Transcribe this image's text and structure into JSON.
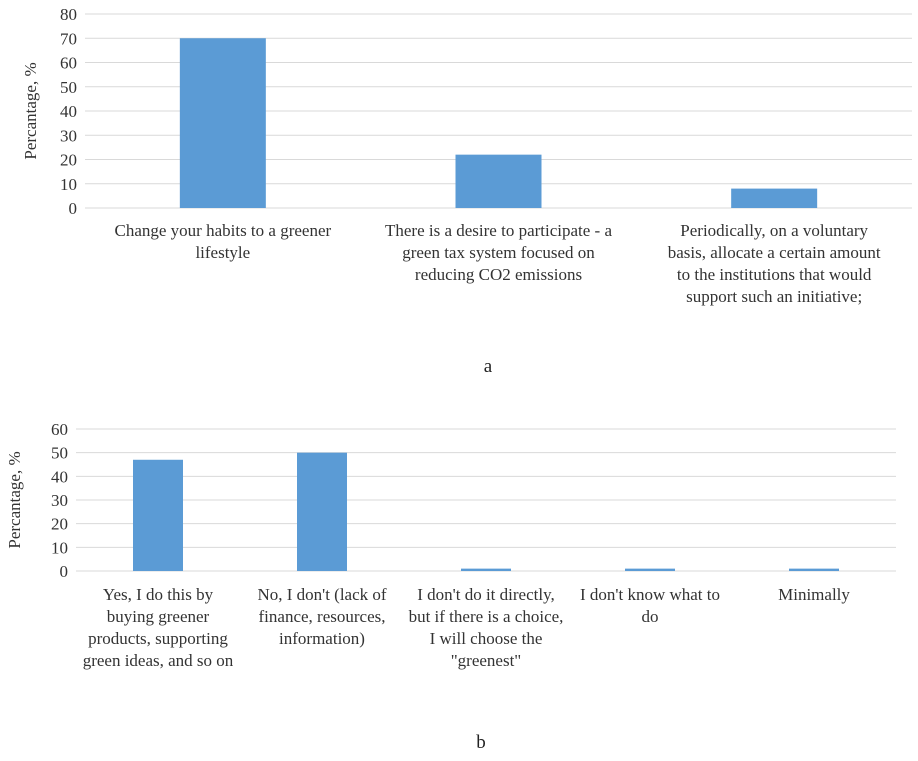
{
  "chart_data": [
    {
      "type": "bar",
      "panel_label": "a",
      "ylabel": "Percantage, %",
      "ylim": [
        0,
        80
      ],
      "yticks": [
        0,
        10,
        20,
        30,
        40,
        50,
        60,
        70,
        80
      ],
      "grid": true,
      "bar_color": "#5b9bd5",
      "categories": [
        "Change your habits to a greener lifestyle",
        "There is a desire to participate - a green tax system focused on reducing CO2 emissions",
        "Periodically, on a voluntary basis, allocate a certain amount to the institutions that would support such an initiative;"
      ],
      "values": [
        70,
        22,
        8
      ]
    },
    {
      "type": "bar",
      "panel_label": "b",
      "ylabel": "Percantage, %",
      "ylim": [
        0,
        60
      ],
      "yticks": [
        0,
        10,
        20,
        30,
        40,
        50,
        60
      ],
      "grid": true,
      "bar_color": "#5b9bd5",
      "categories": [
        "Yes, I do this by buying greener products, supporting green ideas, and so on",
        "No, I don't (lack of finance, resources, information)",
        "I don't do it directly, but if there is a choice, I will choose the \"greenest\"",
        "I don't know what to do",
        "Minimally"
      ],
      "values": [
        47,
        50,
        1,
        1,
        1
      ]
    }
  ]
}
